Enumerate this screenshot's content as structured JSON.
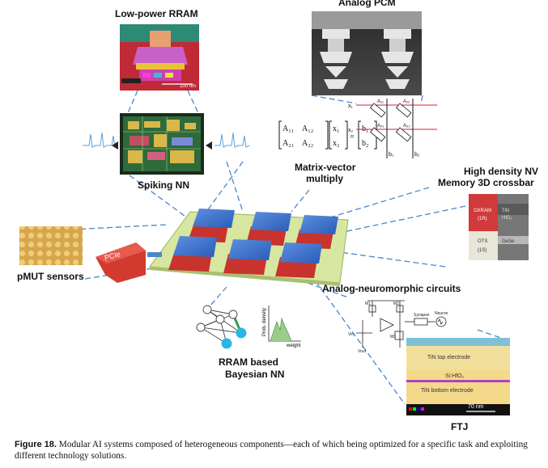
{
  "labels": {
    "low_power_rram": "Low-power RRAM",
    "analog_pcm": "Analog PCM",
    "spiking_nn": "Spiking NN",
    "matrix_vector_line1": "Matrix-vector",
    "matrix_vector_line2": "multiply",
    "high_density_line1": "High density NV",
    "high_density_line2": "Memory 3D crossbar",
    "pmut_sensors": "pMUT sensors",
    "analog_neuromorphic": "Analog-neuromorphic circuits",
    "rram_bayesian_line1": "RRAM  based",
    "rram_bayesian_line2": "Bayesian NN",
    "ftj": "FTJ",
    "pcie": "PCIe",
    "prob_density": "Prob. density",
    "weight": "weight",
    "rram_scale": "100 nm",
    "oxram": "OXRAM",
    "oxram_sub": "(1R)",
    "ots": "OTS",
    "ots_sub": "(1S)",
    "crossbar_side_tin": "TiN",
    "crossbar_side_hfo": "HfO₂",
    "crossbar_side_gst": "GeSe",
    "ftj_top": "TiN top electrode",
    "ftj_mid": "Si:HfO₂",
    "ftj_bottom": "TiN bottom electrode",
    "ftj_scale": "70 nm",
    "circuit_m1": "M1",
    "circuit_m2": "M2",
    "circuit_m3": "M3",
    "circuit_vin": "Vin",
    "circuit_vout": "Vout",
    "circuit_synapse": "Synapse",
    "circuit_neuron": "Neuron",
    "mat_a11": "A₁₁",
    "mat_a12": "A₁₂",
    "mat_a21": "A₂₁",
    "mat_a22": "A₂₂",
    "mat_x1": "x₁",
    "mat_x2": "x₂",
    "mat_b1": "b₁",
    "mat_b2": "b₂",
    "mat_eq": "=",
    "xb_a11": "A₁₁",
    "xb_a12": "A₁₂",
    "xb_a21": "A₂₁",
    "xb_a22": "A₂₂",
    "xb_x1": "x₁",
    "xb_x2": "x₂",
    "xb_b1": "b₁",
    "xb_b2": "b₂"
  },
  "caption": {
    "label": "Figure 18.",
    "text": "  Modular AI systems composed of heterogeneous components—each of which being optimized for a specific task and exploiting different technology solutions."
  },
  "colors": {
    "board": "#d7e6a0",
    "chip_top": "#2f6fd0",
    "chip_base": "#c8332e",
    "pcie": "#d33a2f",
    "dash": "#4a86c8",
    "ftj_bg": "#f4d98a",
    "ftj_band": "#b040c0"
  },
  "icons": [
    "arrow-right-icon",
    "bayesian-network-icon",
    "distribution-plot-icon",
    "spike-trace-icon"
  ]
}
